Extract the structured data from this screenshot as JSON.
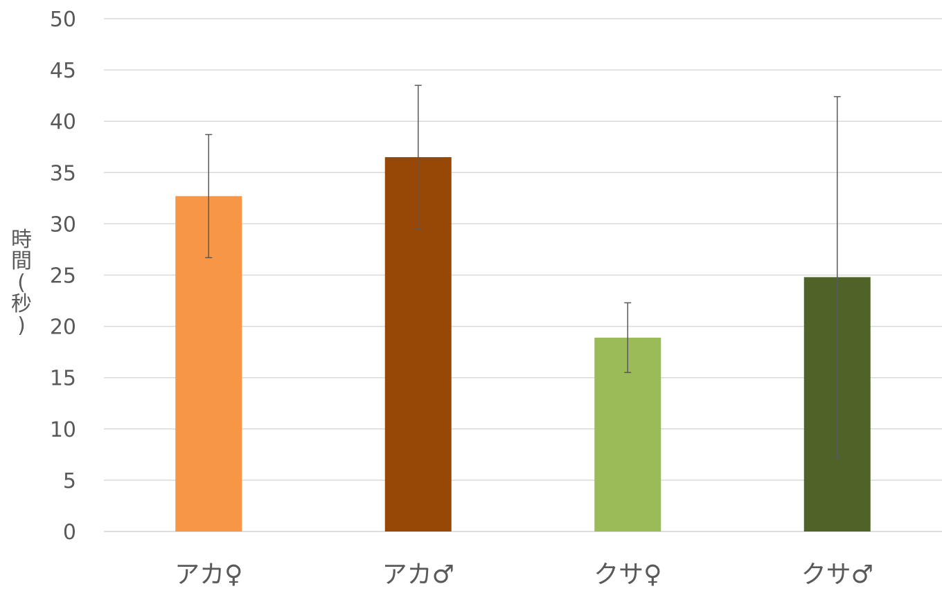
{
  "chart_data": {
    "type": "bar",
    "title": "",
    "xlabel": "",
    "ylabel": "時間(秒)",
    "categories": [
      "アカ♀",
      "アカ♂",
      "クサ♀",
      "クサ♂"
    ],
    "values": [
      32.7,
      36.5,
      18.9,
      24.8
    ],
    "error_upper": [
      38.7,
      43.5,
      22.3,
      42.4
    ],
    "error_lower": [
      26.7,
      29.5,
      15.5,
      7.2
    ],
    "bar_colors": [
      "#F79646",
      "#974806",
      "#9BBB59",
      "#4F6228"
    ],
    "ylim": [
      0,
      50
    ],
    "yticks": [
      0,
      5,
      10,
      15,
      20,
      25,
      30,
      35,
      40,
      45,
      50
    ],
    "grid": true,
    "legend": "none"
  }
}
